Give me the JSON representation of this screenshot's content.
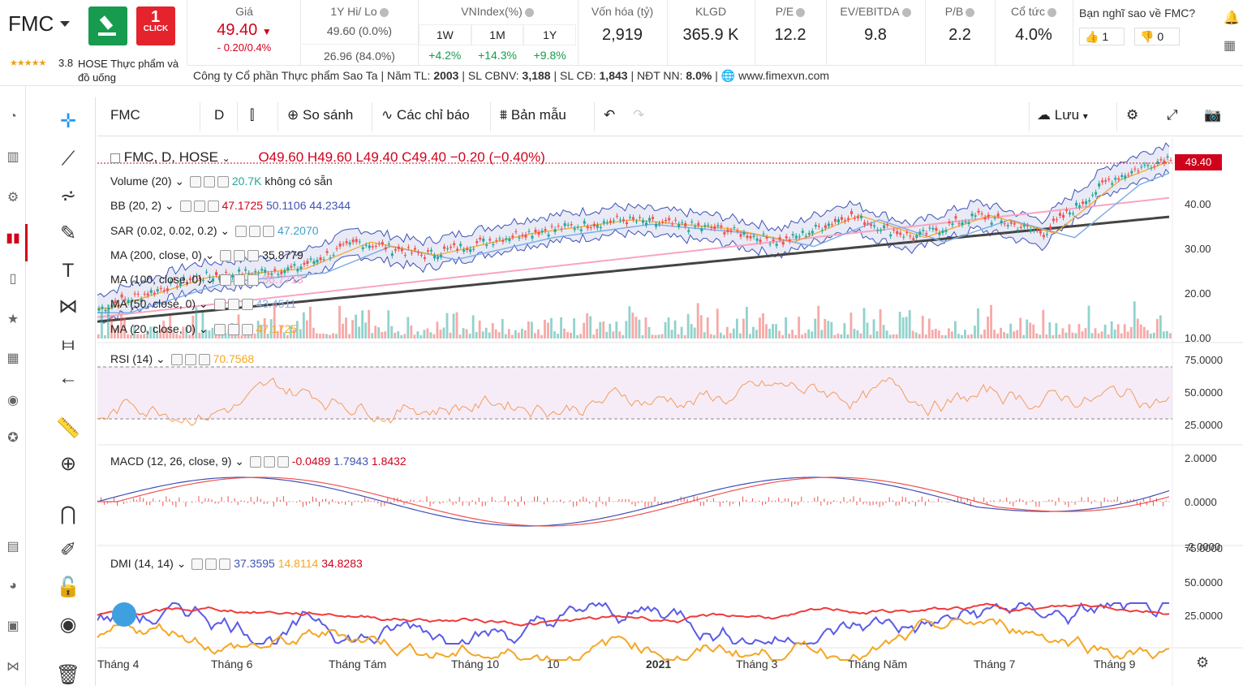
{
  "header": {
    "ticker": "FMC",
    "rating": "3.8",
    "exchange": "HOSE",
    "industry": "Thực phẩm và đồ uống",
    "promo_label": "CLICK",
    "price_label": "Giá",
    "price": "49.40",
    "price_change": "- 0.20/0.4%",
    "hilo_label": "1Y Hi/ Lo",
    "hi": "49.60 (0.0%)",
    "lo": "26.96 (84.0%)",
    "vnindex_label": "VNIndex(%)",
    "vnindex_periods": [
      "1W",
      "1M",
      "1Y"
    ],
    "vnindex_values": [
      "+4.2%",
      "+14.3%",
      "+9.8%"
    ],
    "mcap_label": "Vốn hóa (tỷ)",
    "mcap": "2,919",
    "klgd_label": "KLGD",
    "klgd": "365.9 K",
    "pe_label": "P/E",
    "pe": "12.2",
    "ev_label": "EV/EBITDA",
    "ev": "9.8",
    "pb_label": "P/B",
    "pb": "2.2",
    "div_label": "Cổ tức",
    "div": "4.0%",
    "opinion_label": "Bạn nghĩ sao về FMC?",
    "likes": "1",
    "dislikes": "0",
    "company": "Công ty Cổ phần Thực phẩm Sao Ta",
    "founded_label": "Năm TL:",
    "founded": "2003",
    "employees_label": "SL CBNV:",
    "employees": "3,188",
    "shareholders_label": "SL CĐ:",
    "shareholders": "1,843",
    "foreign_label": "NĐT NN:",
    "foreign": "8.0%",
    "website": "www.fimexvn.com"
  },
  "toolbar": {
    "symbol": "FMC",
    "interval": "D",
    "compare": "So sánh",
    "indicators": "Các chỉ báo",
    "templates": "Bản mẫu",
    "save": "Lưu"
  },
  "legend": {
    "main_title": "FMC, D, HOSE",
    "ohlc": "O49.60  H49.60  L49.40  C49.40  −0.20 (−0.40%)",
    "volume": "Volume (20)",
    "volume_vals": [
      "20.7K",
      "không có sẵn"
    ],
    "bb": "BB (20, 2)",
    "bb_vals": [
      "47.1725",
      "50.1106",
      "44.2344"
    ],
    "sar": "SAR (0.02, 0.02, 0.2)",
    "sar_val": "47.2070",
    "ma200": "MA (200, close, 0)",
    "ma200_val": "35.8779",
    "ma100": "MA (100, close, 0)",
    "ma100_val": "36.7713",
    "ma50": "MA (50, close, 0)",
    "ma50_val": "43.4511",
    "ma20": "MA (20, close, 0)",
    "ma20_val": "47.1725",
    "rsi": "RSI (14)",
    "rsi_val": "70.7568",
    "macd": "MACD (12, 26, close, 9)",
    "macd_vals": [
      "-0.0489",
      "1.7943",
      "1.8432"
    ],
    "dmi": "DMI (14, 14)",
    "dmi_vals": [
      "37.3595",
      "14.8114",
      "34.8283"
    ]
  },
  "price_tag": "49.40",
  "y_price_ticks": [
    "40.00",
    "30.00",
    "20.00",
    "10.00"
  ],
  "y_rsi_ticks": [
    "75.0000",
    "50.0000",
    "25.0000"
  ],
  "y_macd_ticks": [
    "2.0000",
    "0.0000",
    "-2.0000"
  ],
  "y_dmi_ticks": [
    "75.0000",
    "50.0000",
    "25.0000"
  ],
  "x_ticks": [
    "Tháng 4",
    "Tháng 6",
    "Tháng Tám",
    "Tháng 10",
    "10",
    "2021",
    "Tháng 3",
    "Tháng Năm",
    "Tháng 7",
    "Tháng 9"
  ],
  "colors": {
    "up": "#26a69a",
    "down": "#ef5350",
    "bb": "#3f51b5",
    "ma200": "#444444",
    "ma100": "#f8a5c2",
    "ma50": "#7faee8",
    "ma20": "#f5a623",
    "price_tag": "#d0021b"
  }
}
